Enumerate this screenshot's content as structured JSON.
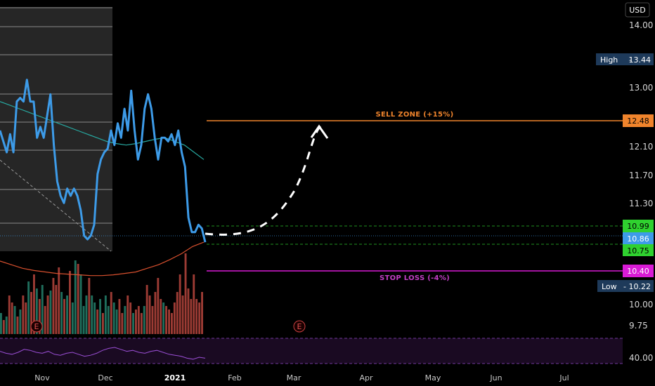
{
  "currency": "USD",
  "chart_data": {
    "type": "line",
    "title": "",
    "xlabel": "",
    "ylabel": "",
    "ylim": [
      9.6,
      14.3
    ],
    "y_axis_ticks": [
      "14.00",
      "13.00",
      "12.10",
      "11.70",
      "11.30",
      "10.00",
      "9.75"
    ],
    "x_axis_months": [
      "Nov",
      "Dec",
      "2021",
      "Feb",
      "Mar",
      "Apr",
      "May",
      "Jun",
      "Jul"
    ],
    "series": [
      {
        "name": "",
        "color": "#3d9be8",
        "values": [
          12.4,
          12.25,
          12.1,
          12.35,
          12.1,
          12.8,
          12.85,
          12.8,
          13.1,
          12.8,
          12.8,
          12.3,
          12.45,
          12.3,
          12.6,
          12.9,
          12.2,
          11.7,
          11.5,
          11.4,
          11.6,
          11.5,
          11.6,
          11.5,
          11.3,
          10.95,
          10.9,
          10.95,
          11.1,
          11.8,
          12.0,
          12.1,
          12.15,
          12.4,
          12.2,
          12.5,
          12.3,
          12.7,
          12.4,
          12.95,
          12.4,
          12.0,
          12.2,
          12.7,
          12.9,
          12.7,
          12.3,
          12.0,
          12.3,
          12.3,
          12.25,
          12.35,
          12.2,
          12.4,
          12.1,
          11.9,
          11.2,
          11.0,
          11.0,
          11.1,
          11.05,
          10.86
        ]
      },
      {
        "name": "",
        "color": "#27a8a0",
        "values": [
          12.8,
          12.75,
          12.7,
          12.65,
          12.6,
          12.55,
          12.5,
          12.45,
          12.4,
          12.35,
          12.3,
          12.25,
          12.22,
          12.2,
          12.22,
          12.25,
          12.28,
          12.3,
          12.25,
          12.2,
          12.1,
          12.0
        ]
      },
      {
        "name": "",
        "color": "#d9502e",
        "values": [
          10.6,
          10.55,
          10.5,
          10.47,
          10.45,
          10.43,
          10.42,
          10.41,
          10.4,
          10.4,
          10.41,
          10.43,
          10.45,
          10.5,
          10.55,
          10.62,
          10.7,
          10.8,
          10.86
        ]
      }
    ],
    "projection": {
      "start": 10.86,
      "end": 12.48,
      "style": "dashed white arc"
    },
    "levels": {
      "sell_zone": {
        "label": "SELL ZONE (+15%)",
        "value": "12.48",
        "color": "#f0842c"
      },
      "stop_loss": {
        "label": "STOP LOSS (-4%)",
        "value": "10.40",
        "color": "#d91bd6"
      },
      "entry_upper": {
        "value": "10.99",
        "color": "#2fd12f"
      },
      "entry_lower": {
        "value": "10.75",
        "color": "#2fd12f"
      },
      "last_price": {
        "value": "10.86",
        "color": "#3d9be8"
      },
      "high": {
        "label": "High",
        "value": "13.44"
      },
      "low": {
        "label": "Low",
        "value": "10.22"
      }
    },
    "volume": {
      "up_color": "#1f6e5c",
      "down_color": "#9c3b34",
      "bars": [
        {
          "h": 0.3,
          "d": "up"
        },
        {
          "h": 0.2,
          "d": "down"
        },
        {
          "h": 0.25,
          "d": "up"
        },
        {
          "h": 0.55,
          "d": "down"
        },
        {
          "h": 0.45,
          "d": "down"
        },
        {
          "h": 0.4,
          "d": "up"
        },
        {
          "h": 0.25,
          "d": "down"
        },
        {
          "h": 0.35,
          "d": "up"
        },
        {
          "h": 0.55,
          "d": "down"
        },
        {
          "h": 0.45,
          "d": "down"
        },
        {
          "h": 0.75,
          "d": "up"
        },
        {
          "h": 0.6,
          "d": "down"
        },
        {
          "h": 0.85,
          "d": "down"
        },
        {
          "h": 0.65,
          "d": "up"
        },
        {
          "h": 0.5,
          "d": "down"
        },
        {
          "h": 0.7,
          "d": "up"
        },
        {
          "h": 0.4,
          "d": "down"
        },
        {
          "h": 0.55,
          "d": "down"
        },
        {
          "h": 0.62,
          "d": "up"
        },
        {
          "h": 0.8,
          "d": "down"
        },
        {
          "h": 0.7,
          "d": "down"
        },
        {
          "h": 0.95,
          "d": "down"
        },
        {
          "h": 0.6,
          "d": "up"
        },
        {
          "h": 0.5,
          "d": "down"
        },
        {
          "h": 0.55,
          "d": "up"
        },
        {
          "h": 0.9,
          "d": "down"
        },
        {
          "h": 0.45,
          "d": "up"
        },
        {
          "h": 1.05,
          "d": "up"
        },
        {
          "h": 1.0,
          "d": "down"
        },
        {
          "h": 0.85,
          "d": "up"
        },
        {
          "h": 0.4,
          "d": "up"
        },
        {
          "h": 0.55,
          "d": "up"
        },
        {
          "h": 0.8,
          "d": "down"
        },
        {
          "h": 0.55,
          "d": "up"
        },
        {
          "h": 0.45,
          "d": "up"
        },
        {
          "h": 0.35,
          "d": "down"
        },
        {
          "h": 0.5,
          "d": "up"
        },
        {
          "h": 0.3,
          "d": "down"
        },
        {
          "h": 0.55,
          "d": "up"
        },
        {
          "h": 0.4,
          "d": "up"
        },
        {
          "h": 0.6,
          "d": "down"
        },
        {
          "h": 0.45,
          "d": "up"
        },
        {
          "h": 0.35,
          "d": "up"
        },
        {
          "h": 0.5,
          "d": "down"
        },
        {
          "h": 0.3,
          "d": "down"
        },
        {
          "h": 0.4,
          "d": "up"
        },
        {
          "h": 0.55,
          "d": "down"
        },
        {
          "h": 0.45,
          "d": "down"
        },
        {
          "h": 0.3,
          "d": "up"
        },
        {
          "h": 0.35,
          "d": "down"
        },
        {
          "h": 0.4,
          "d": "down"
        },
        {
          "h": 0.3,
          "d": "down"
        },
        {
          "h": 0.4,
          "d": "up"
        },
        {
          "h": 0.7,
          "d": "down"
        },
        {
          "h": 0.55,
          "d": "down"
        },
        {
          "h": 0.4,
          "d": "down"
        },
        {
          "h": 0.6,
          "d": "down"
        },
        {
          "h": 0.8,
          "d": "down"
        },
        {
          "h": 0.5,
          "d": "down"
        },
        {
          "h": 0.45,
          "d": "up"
        },
        {
          "h": 0.4,
          "d": "down"
        },
        {
          "h": 0.35,
          "d": "down"
        },
        {
          "h": 0.3,
          "d": "down"
        },
        {
          "h": 0.45,
          "d": "down"
        },
        {
          "h": 0.6,
          "d": "down"
        },
        {
          "h": 0.85,
          "d": "down"
        },
        {
          "h": 0.55,
          "d": "down"
        },
        {
          "h": 1.15,
          "d": "down"
        },
        {
          "h": 0.65,
          "d": "down"
        },
        {
          "h": 0.5,
          "d": "down"
        },
        {
          "h": 0.85,
          "d": "down"
        },
        {
          "h": 0.5,
          "d": "down"
        },
        {
          "h": 0.45,
          "d": "down"
        },
        {
          "h": 0.6,
          "d": "down"
        }
      ]
    },
    "earnings_markers": [
      "E",
      "E"
    ],
    "rsi": {
      "label": "40.00",
      "color": "#9b4fd6",
      "values": [
        0.55,
        0.45,
        0.4,
        0.5,
        0.65,
        0.6,
        0.5,
        0.45,
        0.55,
        0.4,
        0.35,
        0.45,
        0.5,
        0.4,
        0.3,
        0.35,
        0.45,
        0.6,
        0.7,
        0.75,
        0.65,
        0.55,
        0.6,
        0.5,
        0.45,
        0.55,
        0.6,
        0.5,
        0.4,
        0.35,
        0.3,
        0.2,
        0.15,
        0.25,
        0.2
      ]
    }
  }
}
